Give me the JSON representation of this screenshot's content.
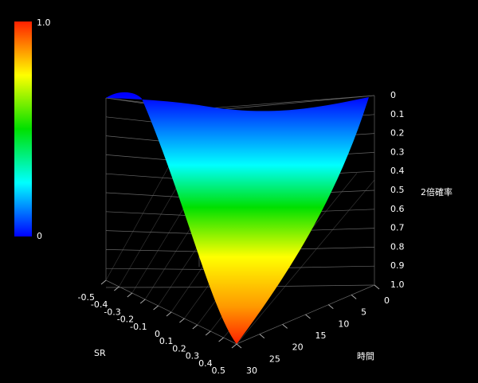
{
  "chart_data": {
    "type": "surface",
    "zlabel": "2倍確率",
    "xlabel": "SR",
    "ylabel": "時間",
    "colorbar_labels": [
      "1.0",
      "0"
    ],
    "xticks": [
      -0.5,
      -0.4,
      -0.3,
      -0.2,
      -0.1,
      0,
      0.1,
      0.2,
      0.3,
      0.4,
      0.5
    ],
    "xlim": [
      -0.5,
      0.5
    ],
    "yticks": [
      0,
      5,
      10,
      15,
      20,
      25,
      30
    ],
    "ylim": [
      0,
      30
    ],
    "zticks": [
      0,
      0.1,
      0.2,
      0.3,
      0.4,
      0.5,
      0.6,
      0.7,
      0.8,
      0.9,
      {
        "value": 1,
        "label": "1.0"
      }
    ],
    "zlim": [
      0,
      1
    ],
    "zinverted": true
  }
}
